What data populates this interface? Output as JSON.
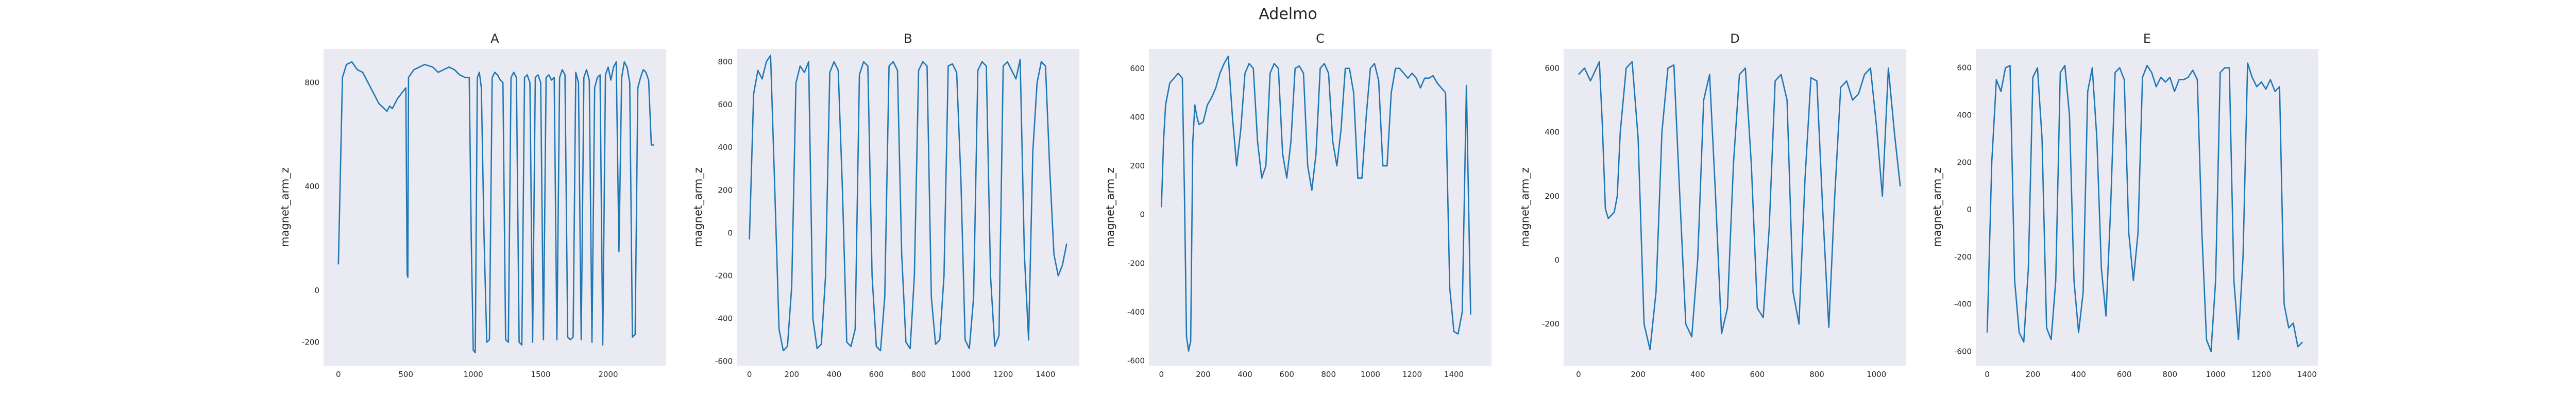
{
  "figure": {
    "title": "Adelmo"
  },
  "chart_data": [
    {
      "type": "line",
      "title": "A",
      "ylabel": "magnet_arm_z",
      "xlabel": "",
      "xlim": [
        -110,
        2430
      ],
      "ylim": [
        -290,
        930
      ],
      "xticks": [
        0,
        500,
        1000,
        1500,
        2000
      ],
      "yticks": [
        -200,
        0,
        400,
        800
      ],
      "grid": false,
      "series": [
        {
          "color": "#1f77b4",
          "x": [
            0,
            30,
            60,
            100,
            140,
            180,
            220,
            260,
            300,
            340,
            360,
            380,
            400,
            440,
            470,
            500,
            510,
            515,
            520,
            560,
            600,
            640,
            700,
            740,
            780,
            820,
            860,
            900,
            940,
            970,
            985,
            1000,
            1015,
            1030,
            1045,
            1060,
            1080,
            1100,
            1120,
            1140,
            1160,
            1180,
            1200,
            1220,
            1240,
            1260,
            1280,
            1300,
            1320,
            1340,
            1360,
            1380,
            1400,
            1420,
            1440,
            1460,
            1480,
            1500,
            1520,
            1540,
            1560,
            1580,
            1600,
            1620,
            1640,
            1660,
            1680,
            1700,
            1720,
            1740,
            1760,
            1780,
            1800,
            1820,
            1840,
            1860,
            1880,
            1900,
            1920,
            1940,
            1960,
            1980,
            2000,
            2020,
            2040,
            2060,
            2080,
            2100,
            2120,
            2140,
            2160,
            2180,
            2200,
            2220,
            2240,
            2260,
            2280,
            2300,
            2320,
            2340
          ],
          "y": [
            100,
            820,
            870,
            880,
            850,
            840,
            800,
            760,
            720,
            700,
            690,
            710,
            700,
            740,
            760,
            780,
            60,
            50,
            820,
            850,
            860,
            870,
            860,
            840,
            850,
            860,
            850,
            830,
            820,
            820,
            200,
            -230,
            -240,
            820,
            840,
            780,
            200,
            -200,
            -190,
            820,
            840,
            830,
            810,
            800,
            -190,
            -200,
            820,
            840,
            820,
            -200,
            -210,
            820,
            830,
            800,
            -200,
            820,
            830,
            800,
            -190,
            820,
            830,
            810,
            820,
            -190,
            820,
            850,
            830,
            -180,
            -190,
            -180,
            840,
            800,
            -190,
            820,
            850,
            810,
            -200,
            780,
            820,
            830,
            -210,
            830,
            860,
            810,
            860,
            880,
            150,
            820,
            880,
            860,
            800,
            -180,
            -170,
            780,
            820,
            850,
            840,
            810,
            560,
            560
          ]
        }
      ]
    },
    {
      "type": "line",
      "title": "B",
      "ylabel": "magnet_arm_z",
      "xlabel": "",
      "xlim": [
        -60,
        1560
      ],
      "ylim": [
        -620,
        860
      ],
      "xticks": [
        0,
        200,
        400,
        600,
        800,
        1000,
        1200,
        1400
      ],
      "yticks": [
        -600,
        -400,
        -200,
        0,
        200,
        400,
        600,
        800
      ],
      "grid": false,
      "series": [
        {
          "color": "#1f77b4",
          "x": [
            0,
            20,
            40,
            60,
            80,
            100,
            120,
            140,
            160,
            180,
            200,
            220,
            240,
            260,
            280,
            300,
            320,
            340,
            360,
            380,
            400,
            420,
            440,
            460,
            480,
            500,
            520,
            540,
            560,
            580,
            600,
            620,
            640,
            660,
            680,
            700,
            720,
            740,
            760,
            780,
            800,
            820,
            840,
            860,
            880,
            900,
            920,
            940,
            960,
            980,
            1000,
            1020,
            1040,
            1060,
            1080,
            1100,
            1120,
            1140,
            1160,
            1180,
            1200,
            1220,
            1240,
            1260,
            1280,
            1300,
            1320,
            1340,
            1360,
            1380,
            1400,
            1420,
            1440,
            1460,
            1480,
            1500
          ],
          "y": [
            -30,
            650,
            760,
            720,
            800,
            830,
            200,
            -450,
            -550,
            -530,
            -250,
            700,
            780,
            750,
            800,
            -400,
            -540,
            -520,
            -200,
            750,
            800,
            760,
            200,
            -510,
            -530,
            -450,
            740,
            800,
            780,
            -200,
            -530,
            -550,
            -300,
            780,
            800,
            760,
            -100,
            -510,
            -540,
            -200,
            760,
            800,
            780,
            -300,
            -520,
            -500,
            -200,
            780,
            790,
            750,
            250,
            -500,
            -540,
            -300,
            760,
            800,
            780,
            -200,
            -530,
            -480,
            780,
            800,
            760,
            720,
            810,
            -100,
            -500,
            380,
            700,
            800,
            780,
            300,
            -100,
            -200,
            -150,
            -50
          ]
        }
      ]
    },
    {
      "type": "line",
      "title": "C",
      "ylabel": "magnet_arm_z",
      "xlabel": "",
      "xlim": [
        -60,
        1580
      ],
      "ylim": [
        -620,
        680
      ],
      "xticks": [
        0,
        200,
        400,
        600,
        800,
        1000,
        1200,
        1400
      ],
      "yticks": [
        -600,
        -400,
        -200,
        0,
        200,
        400,
        600
      ],
      "grid": false,
      "series": [
        {
          "color": "#1f77b4",
          "x": [
            0,
            10,
            20,
            40,
            60,
            80,
            100,
            110,
            120,
            130,
            140,
            150,
            160,
            170,
            180,
            200,
            220,
            240,
            260,
            280,
            300,
            320,
            340,
            360,
            380,
            400,
            420,
            440,
            460,
            480,
            500,
            520,
            540,
            560,
            580,
            600,
            620,
            640,
            660,
            680,
            700,
            720,
            740,
            760,
            780,
            800,
            820,
            840,
            860,
            880,
            900,
            920,
            940,
            960,
            980,
            1000,
            1020,
            1040,
            1060,
            1080,
            1100,
            1120,
            1140,
            1160,
            1180,
            1200,
            1220,
            1240,
            1260,
            1280,
            1300,
            1320,
            1340,
            1360,
            1380,
            1400,
            1420,
            1440,
            1460,
            1480
          ],
          "y": [
            30,
            300,
            450,
            540,
            560,
            580,
            560,
            100,
            -500,
            -560,
            -520,
            300,
            450,
            400,
            370,
            380,
            450,
            480,
            520,
            580,
            620,
            650,
            400,
            200,
            350,
            580,
            620,
            600,
            300,
            150,
            200,
            580,
            620,
            600,
            250,
            150,
            300,
            600,
            610,
            580,
            200,
            100,
            250,
            600,
            620,
            580,
            300,
            200,
            350,
            600,
            600,
            500,
            150,
            150,
            400,
            600,
            620,
            550,
            200,
            200,
            500,
            600,
            600,
            580,
            560,
            580,
            560,
            520,
            560,
            560,
            570,
            540,
            520,
            500,
            -300,
            -480,
            -490,
            -400,
            530,
            -410
          ]
        }
      ]
    },
    {
      "type": "line",
      "title": "D",
      "ylabel": "magnet_arm_z",
      "xlabel": "",
      "xlim": [
        -50,
        1100
      ],
      "ylim": [
        -330,
        660
      ],
      "xticks": [
        0,
        200,
        400,
        600,
        800,
        1000
      ],
      "yticks": [
        -200,
        0,
        200,
        400,
        600
      ],
      "grid": false,
      "series": [
        {
          "color": "#1f77b4",
          "x": [
            0,
            20,
            40,
            60,
            70,
            80,
            90,
            100,
            110,
            120,
            130,
            140,
            160,
            180,
            200,
            220,
            240,
            260,
            280,
            300,
            320,
            340,
            360,
            380,
            400,
            420,
            440,
            460,
            480,
            500,
            520,
            540,
            560,
            580,
            600,
            620,
            640,
            660,
            680,
            700,
            720,
            740,
            760,
            780,
            800,
            820,
            840,
            860,
            880,
            900,
            920,
            940,
            960,
            980,
            1000,
            1020,
            1040,
            1060,
            1080
          ],
          "y": [
            580,
            600,
            560,
            600,
            620,
            420,
            160,
            130,
            140,
            150,
            200,
            400,
            600,
            620,
            380,
            -200,
            -280,
            -100,
            400,
            600,
            610,
            200,
            -200,
            -240,
            0,
            500,
            580,
            200,
            -230,
            -150,
            300,
            580,
            600,
            300,
            -150,
            -180,
            100,
            560,
            580,
            500,
            -100,
            -200,
            250,
            570,
            560,
            150,
            -210,
            200,
            540,
            560,
            500,
            520,
            580,
            600,
            420,
            200,
            600,
            400,
            230
          ]
        }
      ]
    },
    {
      "type": "line",
      "title": "E",
      "ylabel": "magnet_arm_z",
      "xlabel": "",
      "xlim": [
        -50,
        1450
      ],
      "ylim": [
        -660,
        680
      ],
      "xticks": [
        0,
        200,
        400,
        600,
        800,
        1000,
        1200,
        1400
      ],
      "yticks": [
        -600,
        -400,
        -200,
        0,
        200,
        400,
        600
      ],
      "grid": false,
      "series": [
        {
          "color": "#1f77b4",
          "x": [
            0,
            20,
            40,
            60,
            80,
            100,
            120,
            140,
            160,
            180,
            200,
            220,
            240,
            260,
            280,
            300,
            320,
            340,
            360,
            380,
            400,
            420,
            440,
            460,
            480,
            500,
            520,
            540,
            560,
            580,
            600,
            620,
            640,
            660,
            680,
            700,
            720,
            740,
            760,
            780,
            800,
            820,
            840,
            860,
            880,
            900,
            920,
            940,
            960,
            980,
            1000,
            1020,
            1040,
            1060,
            1080,
            1100,
            1120,
            1140,
            1160,
            1180,
            1200,
            1220,
            1240,
            1260,
            1280,
            1300,
            1320,
            1340,
            1360,
            1380
          ],
          "y": [
            -520,
            200,
            550,
            500,
            600,
            610,
            -300,
            -520,
            -560,
            -250,
            560,
            600,
            300,
            -500,
            -550,
            -300,
            580,
            610,
            400,
            -300,
            -520,
            -350,
            500,
            600,
            300,
            -250,
            -450,
            0,
            580,
            600,
            550,
            -100,
            -300,
            -100,
            560,
            610,
            580,
            520,
            560,
            540,
            560,
            500,
            550,
            550,
            560,
            590,
            550,
            -100,
            -550,
            -600,
            -300,
            580,
            600,
            600,
            -300,
            -550,
            -200,
            620,
            560,
            520,
            540,
            510,
            550,
            500,
            520,
            -400,
            -500,
            -480,
            -580,
            -560
          ]
        }
      ]
    }
  ]
}
